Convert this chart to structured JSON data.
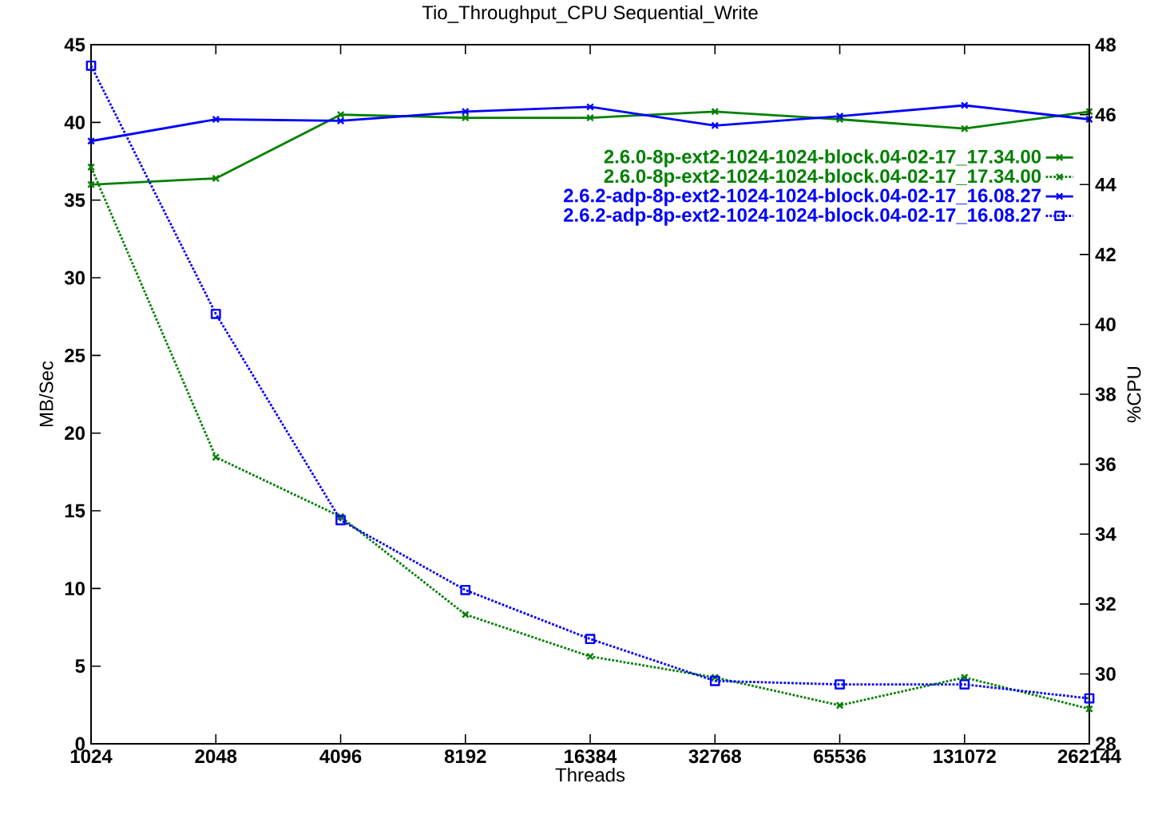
{
  "chart_data": {
    "type": "line",
    "title": "Tio_Throughput_CPU Sequential_Write",
    "xlabel": "Threads",
    "ylabel": "MB/Sec",
    "y2label": "%CPU",
    "x": [
      1024,
      2048,
      4096,
      8192,
      16384,
      32768,
      65536,
      131072,
      262144
    ],
    "log": "x",
    "xlim": [
      1024,
      262144
    ],
    "xticks": [
      1024,
      2048,
      4096,
      8192,
      16384,
      32768,
      65536,
      131072,
      262144
    ],
    "ylim": [
      0,
      45
    ],
    "yticks": [
      0,
      5,
      10,
      15,
      20,
      25,
      30,
      35,
      40,
      45
    ],
    "y2lim": [
      28,
      48
    ],
    "y2ticks": [
      28,
      30,
      32,
      34,
      36,
      38,
      40,
      42,
      44,
      46,
      48
    ],
    "grid": false,
    "legend": "top right",
    "series": [
      {
        "name": "2.6.0-8p-ext2-1024-1024-block.04-02-17_17.34.00",
        "color": "#008000",
        "axis": "y",
        "line_style": "solid",
        "marker": "cross",
        "values": [
          36.0,
          36.4,
          40.5,
          40.3,
          40.3,
          40.7,
          40.2,
          39.6,
          40.7
        ]
      },
      {
        "name": "2.6.0-8p-ext2-1024-1024-block.04-02-17_17.34.00",
        "color": "#008000",
        "axis": "y2",
        "line_style": "dotted",
        "marker": "cross",
        "values": [
          44.5,
          36.2,
          34.5,
          31.7,
          30.5,
          29.9,
          29.1,
          29.9,
          29.0
        ]
      },
      {
        "name": "2.6.2-adp-8p-ext2-1024-1024-block.04-02-17_16.08.27",
        "color": "#0000ff",
        "axis": "y",
        "line_style": "solid",
        "marker": "cross",
        "values": [
          38.8,
          40.2,
          40.1,
          40.7,
          41.0,
          39.8,
          40.4,
          41.1,
          40.2
        ]
      },
      {
        "name": "2.6.2-adp-8p-ext2-1024-1024-block.04-02-17_16.08.27",
        "color": "#0000ff",
        "axis": "y2",
        "line_style": "dotted",
        "marker": "square",
        "values": [
          47.4,
          40.3,
          34.4,
          32.4,
          31.0,
          29.8,
          29.7,
          29.7,
          29.3
        ]
      }
    ]
  }
}
